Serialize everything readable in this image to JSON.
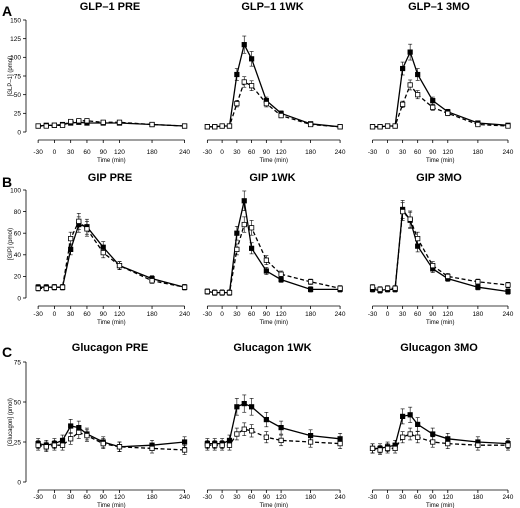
{
  "figure": {
    "row_labels": [
      "A",
      "B",
      "C"
    ],
    "x_label": "Time (min)"
  },
  "chart_data": [
    {
      "type": "line",
      "row": "A",
      "col": 0,
      "title": "GLP–1 PRE",
      "xlabel": "Time (min)",
      "ylabel": "[GLP–1] (pmol)",
      "xlim": [
        -45,
        250
      ],
      "ylim": [
        0,
        150
      ],
      "xticks": [
        -30,
        0,
        30,
        60,
        90,
        120,
        180,
        240
      ],
      "yticks": [
        0,
        25,
        50,
        75,
        100,
        125,
        150
      ],
      "x": [
        -30,
        -15,
        0,
        15,
        30,
        45,
        60,
        90,
        120,
        180,
        240
      ],
      "series": [
        {
          "style": "solid-filled-square",
          "values": [
            8,
            9,
            9,
            10,
            12,
            13,
            12,
            12,
            12,
            10,
            8
          ]
        },
        {
          "style": "dashed-open-square",
          "values": [
            8,
            8,
            9,
            9,
            14,
            15,
            15,
            13,
            13,
            10,
            8
          ]
        }
      ]
    },
    {
      "type": "line",
      "row": "A",
      "col": 1,
      "title": "GLP–1 1WK",
      "xlabel": "Time (min)",
      "ylabel": "",
      "xlim": [
        -45,
        250
      ],
      "ylim": [
        0,
        150
      ],
      "xticks": [
        -30,
        0,
        30,
        60,
        90,
        120,
        180,
        240
      ],
      "yticks": [],
      "x": [
        -30,
        -15,
        0,
        15,
        30,
        45,
        60,
        90,
        120,
        180,
        240
      ],
      "series": [
        {
          "style": "solid-filled-square",
          "values": [
            7,
            7,
            8,
            8,
            77,
            117,
            98,
            42,
            25,
            11,
            7
          ]
        },
        {
          "style": "dashed-open-square",
          "values": [
            7,
            7,
            8,
            8,
            38,
            67,
            62,
            38,
            22,
            10,
            7
          ]
        }
      ]
    },
    {
      "type": "line",
      "row": "A",
      "col": 2,
      "title": "GLP–1 3MO",
      "xlabel": "Time (min)",
      "ylabel": "",
      "xlim": [
        -45,
        250
      ],
      "ylim": [
        0,
        150
      ],
      "xticks": [
        -30,
        0,
        30,
        60,
        90,
        120,
        180,
        240
      ],
      "yticks": [],
      "x": [
        -30,
        -15,
        0,
        15,
        30,
        45,
        60,
        90,
        120,
        180,
        240
      ],
      "series": [
        {
          "style": "solid-filled-square",
          "values": [
            7,
            7,
            8,
            8,
            85,
            107,
            77,
            42,
            27,
            12,
            9
          ]
        },
        {
          "style": "dashed-open-square",
          "values": [
            7,
            7,
            8,
            8,
            37,
            63,
            50,
            33,
            25,
            10,
            8
          ]
        }
      ]
    },
    {
      "type": "line",
      "row": "B",
      "col": 0,
      "title": "GIP PRE",
      "xlabel": "Time (min)",
      "ylabel": "[GIP] (pmol)",
      "xlim": [
        -45,
        250
      ],
      "ylim": [
        0,
        100
      ],
      "xticks": [
        -30,
        0,
        30,
        60,
        90,
        120,
        180,
        240
      ],
      "yticks": [
        0,
        20,
        40,
        60,
        80,
        100
      ],
      "x": [
        -30,
        -15,
        0,
        15,
        30,
        45,
        60,
        90,
        120,
        180,
        240
      ],
      "series": [
        {
          "style": "solid-filled-square",
          "values": [
            10,
            10,
            10,
            10,
            45,
            68,
            66,
            47,
            30,
            18,
            10
          ]
        },
        {
          "style": "dashed-open-square",
          "values": [
            9,
            9,
            10,
            10,
            55,
            71,
            64,
            42,
            30,
            16,
            10
          ]
        }
      ]
    },
    {
      "type": "line",
      "row": "B",
      "col": 1,
      "title": "GIP 1WK",
      "xlabel": "Time (min)",
      "ylabel": "",
      "xlim": [
        -45,
        250
      ],
      "ylim": [
        0,
        100
      ],
      "xticks": [
        -30,
        0,
        30,
        60,
        90,
        120,
        180,
        240
      ],
      "yticks": [],
      "x": [
        -30,
        -15,
        0,
        15,
        30,
        45,
        60,
        90,
        120,
        180,
        240
      ],
      "series": [
        {
          "style": "solid-filled-square",
          "values": [
            6,
            5,
            5,
            5,
            60,
            90,
            46,
            25,
            17,
            8,
            8
          ]
        },
        {
          "style": "dashed-open-square",
          "values": [
            6,
            5,
            5,
            5,
            45,
            68,
            65,
            35,
            22,
            15,
            9
          ]
        }
      ]
    },
    {
      "type": "line",
      "row": "B",
      "col": 2,
      "title": "GIP 3MO",
      "xlabel": "Time (min)",
      "ylabel": "",
      "xlim": [
        -45,
        250
      ],
      "ylim": [
        0,
        100
      ],
      "xticks": [
        -30,
        0,
        30,
        60,
        90,
        120,
        180,
        240
      ],
      "yticks": [],
      "x": [
        -30,
        -15,
        0,
        15,
        30,
        45,
        60,
        90,
        120,
        180,
        240
      ],
      "series": [
        {
          "style": "solid-filled-square",
          "values": [
            8,
            7,
            8,
            8,
            82,
            72,
            48,
            27,
            18,
            10,
            6
          ]
        },
        {
          "style": "dashed-open-square",
          "values": [
            10,
            8,
            9,
            9,
            80,
            73,
            55,
            30,
            20,
            15,
            12
          ]
        }
      ]
    },
    {
      "type": "line",
      "row": "C",
      "col": 0,
      "title": "Glucagon PRE",
      "xlabel": "Time (min)",
      "ylabel": "[Glucagon] (pmol)",
      "xlim": [
        -45,
        250
      ],
      "ylim": [
        0,
        75
      ],
      "xticks": [
        -30,
        0,
        30,
        60,
        90,
        120,
        180,
        240
      ],
      "yticks": [
        0,
        25,
        50,
        75
      ],
      "x": [
        -30,
        -15,
        0,
        15,
        30,
        45,
        60,
        90,
        120,
        180,
        240
      ],
      "series": [
        {
          "style": "solid-filled-square",
          "values": [
            24,
            23,
            24,
            26,
            35,
            34,
            30,
            25,
            22,
            23,
            25
          ]
        },
        {
          "style": "dashed-open-square",
          "values": [
            23,
            22,
            23,
            23,
            27,
            31,
            29,
            24,
            22,
            21,
            20
          ]
        }
      ]
    },
    {
      "type": "line",
      "row": "C",
      "col": 1,
      "title": "Glucagon 1WK",
      "xlabel": "Time (min)",
      "ylabel": "",
      "xlim": [
        -45,
        250
      ],
      "ylim": [
        0,
        75
      ],
      "xticks": [
        -30,
        0,
        30,
        60,
        90,
        120,
        180,
        240
      ],
      "yticks": [],
      "x": [
        -30,
        -15,
        0,
        15,
        30,
        45,
        60,
        90,
        120,
        180,
        240
      ],
      "series": [
        {
          "style": "solid-filled-square",
          "values": [
            24,
            24,
            24,
            26,
            47,
            49,
            47,
            39,
            34,
            29,
            27
          ]
        },
        {
          "style": "dashed-open-square",
          "values": [
            23,
            23,
            23,
            23,
            30,
            33,
            32,
            28,
            26,
            25,
            24
          ]
        }
      ]
    },
    {
      "type": "line",
      "row": "C",
      "col": 2,
      "title": "Glucagon 3MO",
      "xlabel": "Time (min)",
      "ylabel": "",
      "xlim": [
        -45,
        250
      ],
      "ylim": [
        0,
        75
      ],
      "xticks": [
        -30,
        0,
        30,
        60,
        90,
        120,
        180,
        240
      ],
      "yticks": [],
      "x": [
        -30,
        -15,
        0,
        15,
        30,
        45,
        60,
        90,
        120,
        180,
        240
      ],
      "series": [
        {
          "style": "solid-filled-square",
          "values": [
            21,
            21,
            22,
            23,
            41,
            42,
            36,
            30,
            27,
            25,
            24
          ]
        },
        {
          "style": "dashed-open-square",
          "values": [
            21,
            20,
            21,
            21,
            28,
            30,
            28,
            25,
            24,
            23,
            23
          ]
        }
      ]
    }
  ]
}
